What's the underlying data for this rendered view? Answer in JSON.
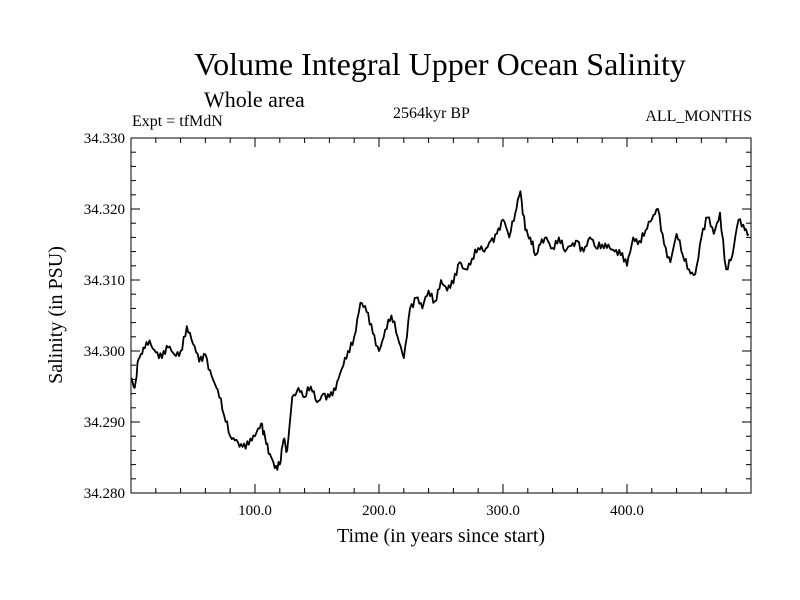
{
  "chart_data": {
    "type": "line",
    "title": "Volume Integral Upper Ocean Salinity",
    "subtitle": "Whole area",
    "experiment": "Expt = tfMdN",
    "period": "2564kyr BP",
    "months": "ALL_MONTHS",
    "xlabel": "Time (in years since start)",
    "ylabel": "Salinity (in PSU)",
    "xlim": [
      0,
      500
    ],
    "ylim": [
      34.28,
      34.33
    ],
    "xticks": [
      100,
      200,
      300,
      400
    ],
    "xtick_labels": [
      "100.0",
      "200.0",
      "300.0",
      "400.0"
    ],
    "yticks": [
      34.28,
      34.29,
      34.3,
      34.31,
      34.32,
      34.33
    ],
    "ytick_labels": [
      "34.280",
      "34.290",
      "34.300",
      "34.310",
      "34.320",
      "34.330"
    ],
    "grid": false,
    "series": [
      {
        "name": "Salinity",
        "x": [
          0,
          3,
          6,
          10,
          15,
          20,
          25,
          30,
          35,
          40,
          45,
          50,
          55,
          60,
          65,
          70,
          75,
          80,
          85,
          90,
          95,
          100,
          105,
          108,
          112,
          116,
          120,
          123,
          126,
          130,
          135,
          140,
          145,
          150,
          155,
          160,
          165,
          170,
          175,
          180,
          185,
          190,
          195,
          200,
          205,
          210,
          215,
          220,
          225,
          230,
          235,
          240,
          245,
          250,
          255,
          260,
          265,
          270,
          275,
          280,
          285,
          290,
          295,
          300,
          305,
          310,
          314,
          318,
          322,
          326,
          330,
          335,
          340,
          345,
          350,
          355,
          360,
          365,
          370,
          375,
          380,
          385,
          390,
          395,
          400,
          405,
          410,
          415,
          420,
          425,
          430,
          435,
          440,
          445,
          450,
          455,
          460,
          465,
          470,
          475,
          480,
          485,
          490,
          495,
          498
        ],
        "values": [
          34.2962,
          34.2948,
          34.2988,
          34.3005,
          34.3015,
          34.2998,
          34.299,
          34.3005,
          34.2995,
          34.3,
          34.3035,
          34.301,
          34.2985,
          34.2995,
          34.2965,
          34.2945,
          34.291,
          34.288,
          34.2875,
          34.2865,
          34.2868,
          34.288,
          34.2898,
          34.288,
          34.2855,
          34.2835,
          34.284,
          34.2875,
          34.286,
          34.2935,
          34.2948,
          34.2935,
          34.295,
          34.2928,
          34.294,
          34.2935,
          34.2945,
          34.2975,
          34.3,
          34.302,
          34.3068,
          34.3055,
          34.3025,
          34.3,
          34.303,
          34.305,
          34.302,
          34.299,
          34.306,
          34.3075,
          34.306,
          34.3085,
          34.307,
          34.31,
          34.3085,
          34.3095,
          34.3125,
          34.3115,
          34.313,
          34.3145,
          34.314,
          34.3155,
          34.3165,
          34.3185,
          34.316,
          34.3195,
          34.3225,
          34.317,
          34.316,
          34.3135,
          34.315,
          34.316,
          34.3145,
          34.316,
          34.314,
          34.3148,
          34.3155,
          34.314,
          34.316,
          34.3145,
          34.315,
          34.315,
          34.314,
          34.3135,
          34.312,
          34.316,
          34.3155,
          34.317,
          34.3185,
          34.32,
          34.315,
          34.3125,
          34.3165,
          34.3135,
          34.3115,
          34.3108,
          34.316,
          34.3188,
          34.3165,
          34.3195,
          34.3115,
          34.3135,
          34.3185,
          34.317,
          34.3165
        ]
      }
    ]
  }
}
